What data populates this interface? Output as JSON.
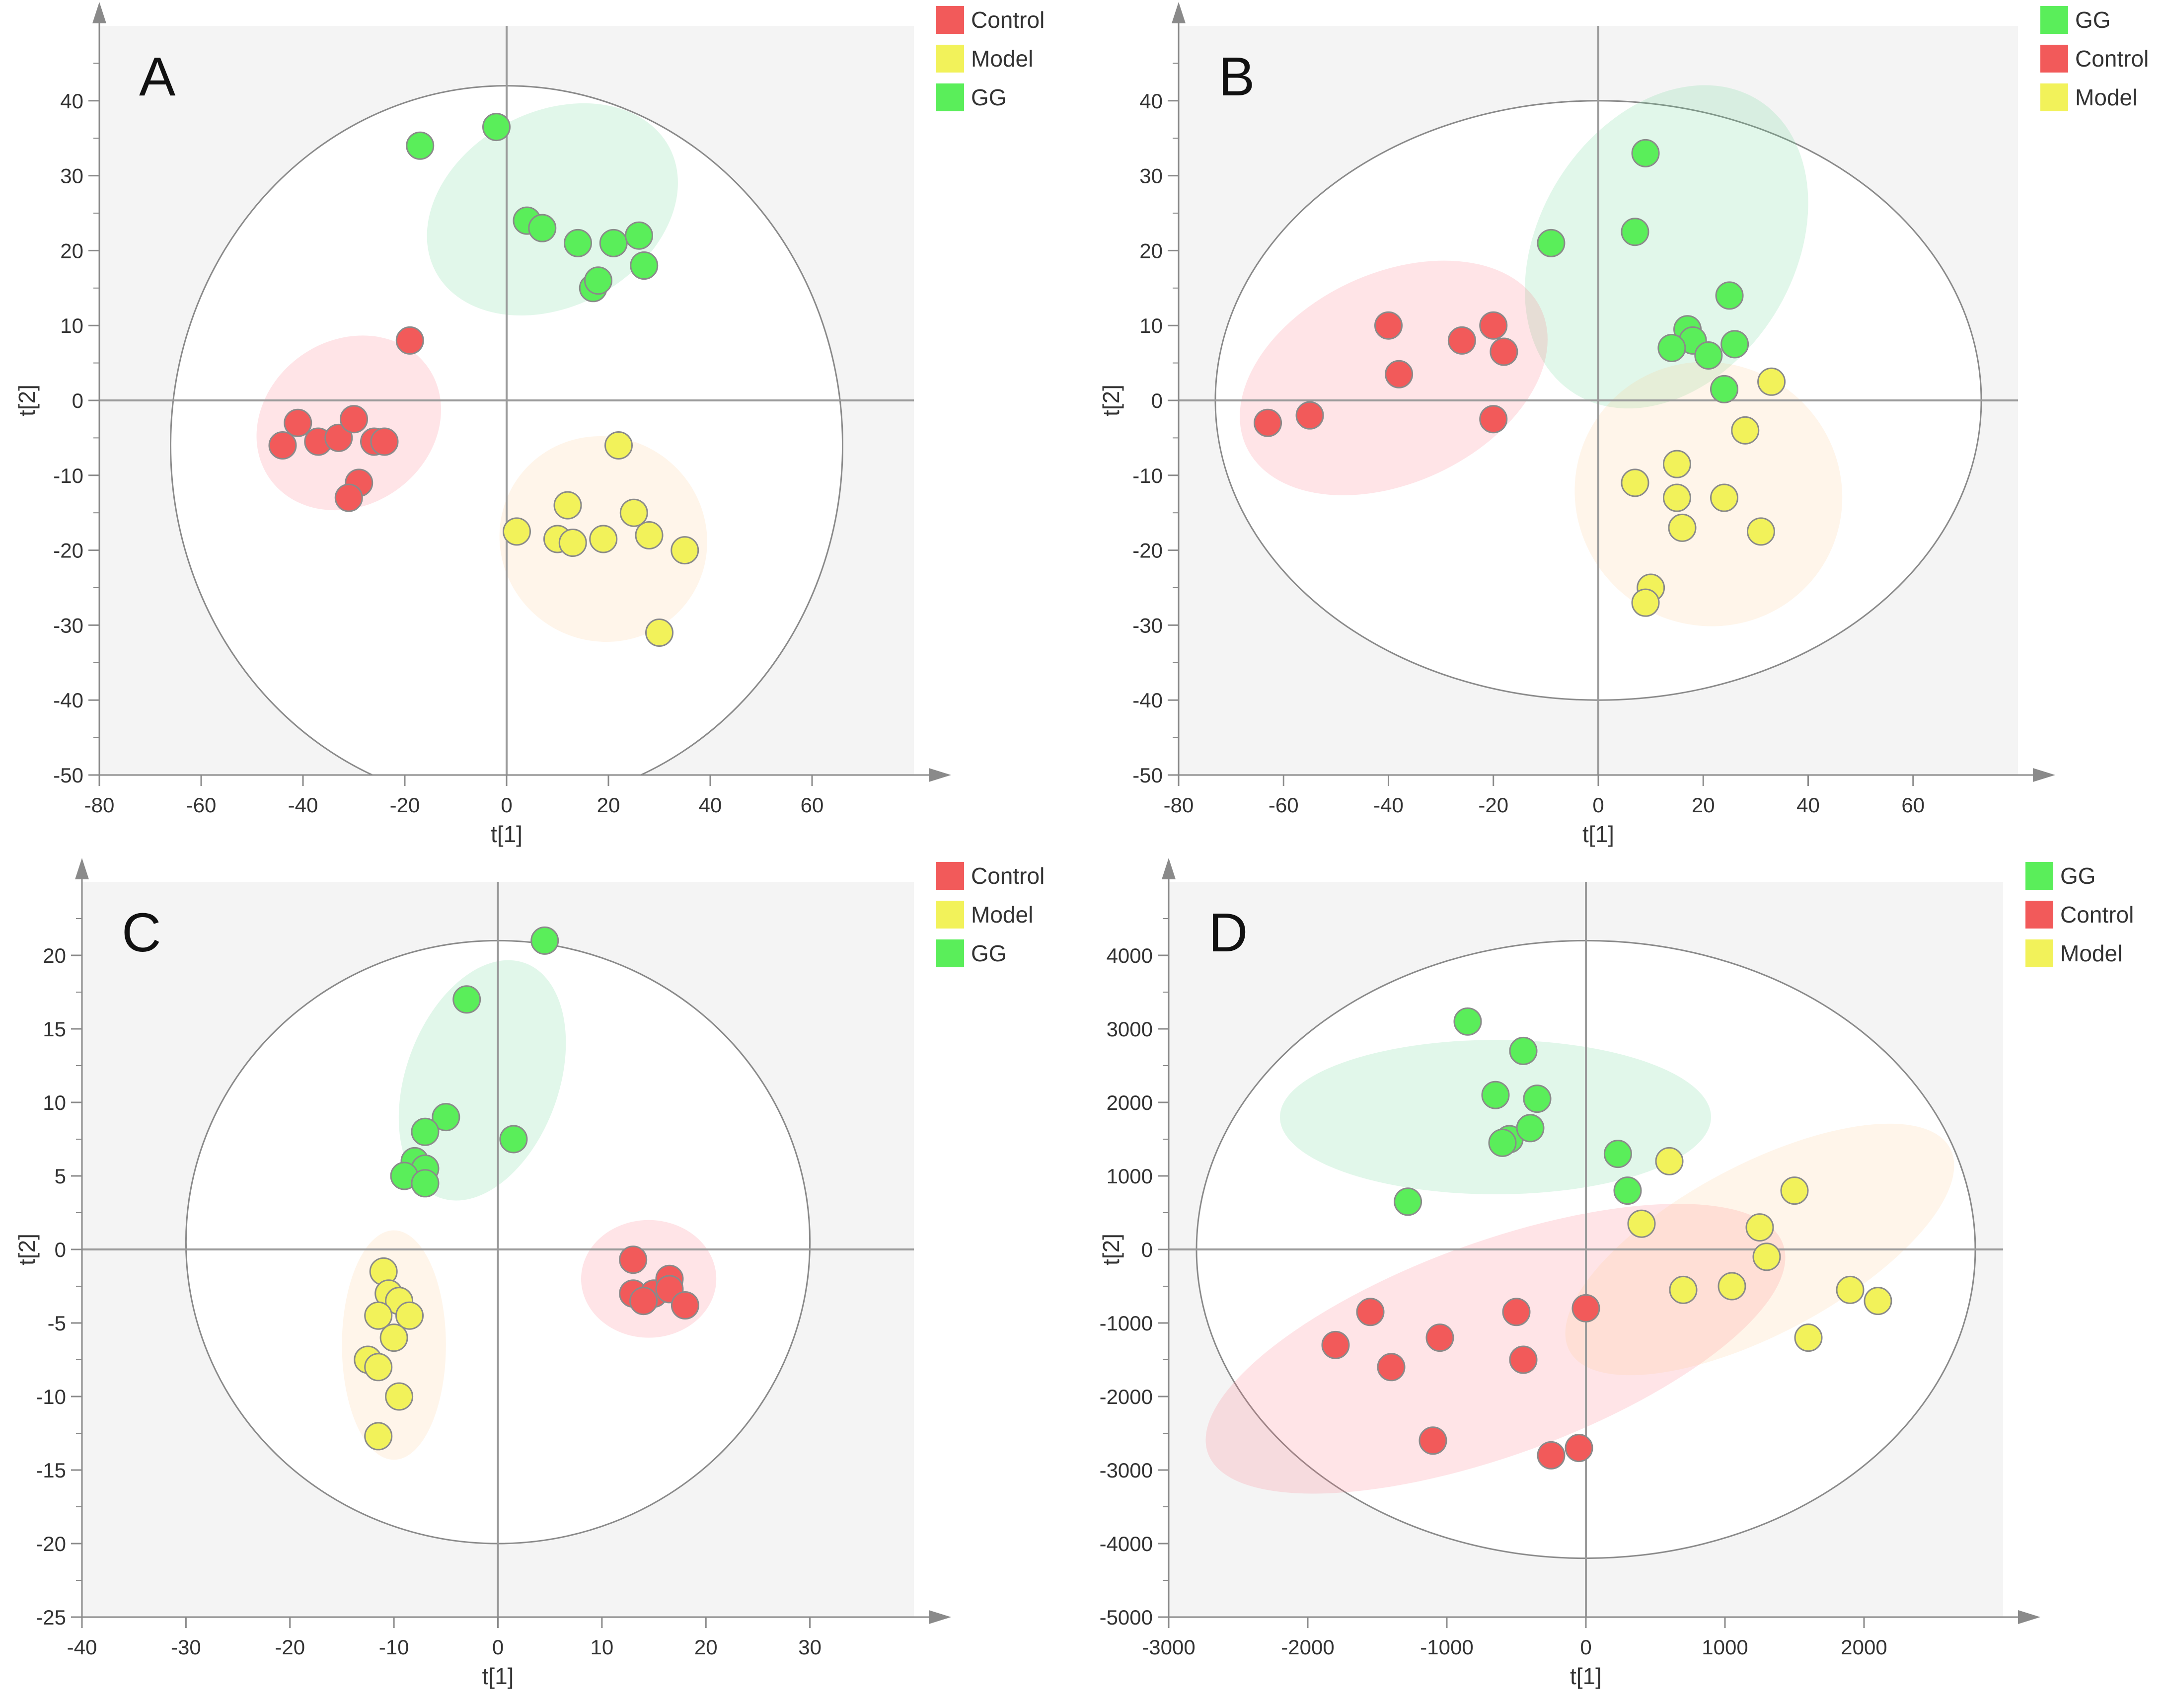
{
  "chart_data": [
    {
      "type": "scatter",
      "panel": "A",
      "xlabel": "t[1]",
      "ylabel": "t[2]",
      "xlim": [
        -80,
        80
      ],
      "ylim": [
        -50,
        50
      ],
      "xticks": [
        -80,
        -60,
        -40,
        -20,
        0,
        20,
        40,
        60
      ],
      "yticks": [
        -50,
        -40,
        -30,
        -20,
        -10,
        0,
        10,
        20,
        30,
        40
      ],
      "ellipse": {
        "cx": 0,
        "cy": -6,
        "rx": 66,
        "ry": 48
      },
      "legend_position": "outside-top-right",
      "legend": [
        "Control",
        "Model",
        "GG"
      ],
      "series": [
        {
          "name": "Control",
          "color": "#f25a5a",
          "x": [
            -44,
            -41,
            -37,
            -33,
            -30,
            -29,
            -26,
            -24,
            -31,
            -19
          ],
          "y": [
            -6,
            -3,
            -5.5,
            -5,
            -2.5,
            -11,
            -5.5,
            -5.5,
            -13,
            8
          ],
          "hull": {
            "cx": -31,
            "cy": -3,
            "rx": 19,
            "ry": 11,
            "angle": -35
          }
        },
        {
          "name": "Model",
          "color": "#f2f25a",
          "x": [
            2,
            10,
            12,
            13,
            19,
            22,
            25,
            28,
            35,
            30
          ],
          "y": [
            -17.5,
            -18.5,
            -14,
            -19,
            -18.5,
            -6,
            -15,
            -18,
            -20,
            -31
          ],
          "hull": {
            "cx": 19,
            "cy": -18.5,
            "rx": 20,
            "ry": 14,
            "angle": -55
          }
        },
        {
          "name": "GG",
          "color": "#5aee5a",
          "x": [
            -17,
            -2,
            4,
            7,
            14,
            17,
            18,
            21,
            26,
            27
          ],
          "y": [
            34,
            36.5,
            24,
            23,
            21,
            15,
            16,
            21,
            22,
            18
          ],
          "hull": {
            "cx": 9,
            "cy": 25.5,
            "rx": 26,
            "ry": 13,
            "angle": -28
          }
        }
      ]
    },
    {
      "type": "scatter",
      "panel": "B",
      "xlabel": "t[1]",
      "ylabel": "t[2]",
      "xlim": [
        -80,
        80
      ],
      "ylim": [
        -50,
        50
      ],
      "xticks": [
        -80,
        -60,
        -40,
        -20,
        0,
        20,
        40,
        60
      ],
      "yticks": [
        -50,
        -40,
        -30,
        -20,
        -10,
        0,
        10,
        20,
        30,
        40
      ],
      "ellipse": {
        "cx": 0,
        "cy": 0,
        "rx": 73,
        "ry": 40
      },
      "legend_position": "outside-top-right",
      "legend": [
        "GG",
        "Control",
        "Model"
      ],
      "series": [
        {
          "name": "GG",
          "color": "#5aee5a",
          "x": [
            9,
            7,
            -9,
            25,
            17,
            18,
            14,
            21,
            26,
            24
          ],
          "y": [
            33,
            22.5,
            21,
            14,
            9.5,
            8,
            7,
            6,
            7.5,
            1.5
          ],
          "hull": {
            "cx": 13,
            "cy": 20.5,
            "rx": 33,
            "ry": 17,
            "angle": -58
          }
        },
        {
          "name": "Control",
          "color": "#f25a5a",
          "x": [
            -63,
            -55,
            -40,
            -38,
            -26,
            -20,
            -18,
            -20
          ],
          "y": [
            -3,
            -2,
            10,
            3.5,
            8,
            10,
            6.5,
            -2.5
          ],
          "hull": {
            "cx": -39,
            "cy": 3,
            "rx": 31,
            "ry": 14,
            "angle": -25
          }
        },
        {
          "name": "Model",
          "color": "#f2f25a",
          "x": [
            33,
            28,
            15,
            7,
            15,
            16,
            24,
            31,
            10,
            9
          ],
          "y": [
            2.5,
            -4,
            -8.5,
            -11,
            -13,
            -17,
            -13,
            -17.5,
            -25,
            -27
          ],
          "hull": {
            "cx": 21,
            "cy": -12.5,
            "rx": 25,
            "ry": 18,
            "angle": -58
          }
        }
      ]
    },
    {
      "type": "scatter",
      "panel": "C",
      "xlabel": "t[1]",
      "ylabel": "t[2]",
      "xlim": [
        -40,
        40
      ],
      "ylim": [
        -25,
        25
      ],
      "xticks": [
        -40,
        -30,
        -20,
        -10,
        0,
        10,
        20,
        30
      ],
      "yticks": [
        -25,
        -20,
        -15,
        -10,
        -5,
        0,
        5,
        10,
        15,
        20
      ],
      "ellipse": {
        "cx": 0,
        "cy": 0.5,
        "rx": 30,
        "ry": 20.5
      },
      "legend_position": "outside-top-right",
      "legend": [
        "Control",
        "Model",
        "GG"
      ],
      "series": [
        {
          "name": "Control",
          "color": "#f25a5a",
          "x": [
            13,
            13,
            14,
            15,
            16.5,
            16.5,
            18,
            14
          ],
          "y": [
            -0.7,
            -3,
            -3.5,
            -3,
            -2,
            -2.7,
            -3.8,
            -3.5
          ],
          "hull": {
            "cx": 14.5,
            "cy": -2,
            "rx": 6.5,
            "ry": 4,
            "angle": 0
          }
        },
        {
          "name": "Model",
          "color": "#f2f25a",
          "x": [
            -11,
            -10.5,
            -9.5,
            -8.5,
            -11.5,
            -10,
            -12.5,
            -11.5,
            -9.5,
            -11.5
          ],
          "y": [
            -1.5,
            -3,
            -3.5,
            -4.5,
            -4.5,
            -6,
            -7.5,
            -8,
            -10,
            -12.7
          ],
          "hull": {
            "cx": -10,
            "cy": -6.5,
            "rx": 5,
            "ry": 7.8,
            "angle": 0
          }
        },
        {
          "name": "GG",
          "color": "#5aee5a",
          "x": [
            4.5,
            -3,
            -5,
            -7,
            1.5,
            -8,
            -7,
            -9,
            -7
          ],
          "y": [
            21,
            17,
            9,
            8,
            7.5,
            6,
            5.5,
            5,
            4.5
          ],
          "hull": {
            "cx": -1.5,
            "cy": 11.5,
            "rx": 12,
            "ry": 5.2,
            "angle": -70
          }
        }
      ]
    },
    {
      "type": "scatter",
      "panel": "D",
      "xlabel": "t[1]",
      "ylabel": "t[2]",
      "xlim": [
        -3000,
        3000
      ],
      "ylim": [
        -5000,
        5000
      ],
      "xticks": [
        -3000,
        -2000,
        -1000,
        0,
        1000,
        2000
      ],
      "yticks": [
        -5000,
        -4000,
        -3000,
        -2000,
        -1000,
        0,
        1000,
        2000,
        3000,
        4000
      ],
      "ellipse": {
        "cx": 0,
        "cy": 0,
        "rx": 2800,
        "ry": 4200
      },
      "legend_position": "outside-top-right",
      "legend": [
        "GG",
        "Control",
        "Model"
      ],
      "series": [
        {
          "name": "GG",
          "color": "#5aee5a",
          "x": [
            -850,
            -450,
            -650,
            -350,
            -550,
            -600,
            -400,
            230,
            300,
            -1280
          ],
          "y": [
            3100,
            2700,
            2100,
            2050,
            1500,
            1450,
            1650,
            1300,
            800,
            650
          ],
          "hull": {
            "cx": -650,
            "cy": 1800,
            "rx": 1550,
            "ry": 1050,
            "angle": 0
          }
        },
        {
          "name": "Control",
          "color": "#f25a5a",
          "x": [
            -1800,
            -1550,
            -1400,
            -1050,
            -500,
            0,
            -450,
            -1100,
            -250,
            -50
          ],
          "y": [
            -1300,
            -850,
            -1600,
            -1200,
            -850,
            -800,
            -1500,
            -2600,
            -2800,
            -2700
          ],
          "hull": {
            "cx": -650,
            "cy": -1350,
            "rx": 2200,
            "ry": 1450,
            "angle": -20
          }
        },
        {
          "name": "Model",
          "color": "#f2f25a",
          "x": [
            600,
            400,
            700,
            1050,
            1250,
            1300,
            1500,
            1900,
            2100,
            1600
          ],
          "y": [
            1200,
            350,
            -550,
            -500,
            300,
            -100,
            800,
            -550,
            -700,
            -1200
          ],
          "hull": {
            "cx": 1250,
            "cy": 0,
            "rx": 1550,
            "ry": 1150,
            "angle": -28
          }
        }
      ]
    }
  ]
}
